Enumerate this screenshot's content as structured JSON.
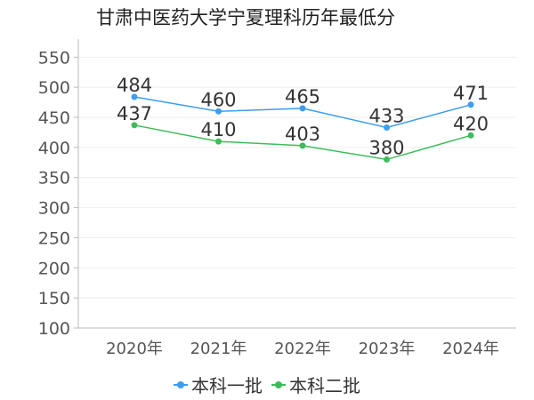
{
  "chart_data": {
    "type": "line",
    "title": "甘肃中医药大学宁夏理科历年最低分",
    "categories": [
      "2020年",
      "2021年",
      "2022年",
      "2023年",
      "2024年"
    ],
    "series": [
      {
        "name": "本科一批",
        "values": [
          484,
          460,
          465,
          433,
          471
        ],
        "color": "#3d9df0"
      },
      {
        "name": "本科二批",
        "values": [
          437,
          410,
          403,
          380,
          420
        ],
        "color": "#3dbd5a"
      }
    ],
    "yticks": [
      100,
      150,
      200,
      250,
      300,
      350,
      400,
      450,
      500,
      550
    ],
    "ylim": [
      100,
      580
    ],
    "grid": true,
    "legend": "bottom"
  }
}
